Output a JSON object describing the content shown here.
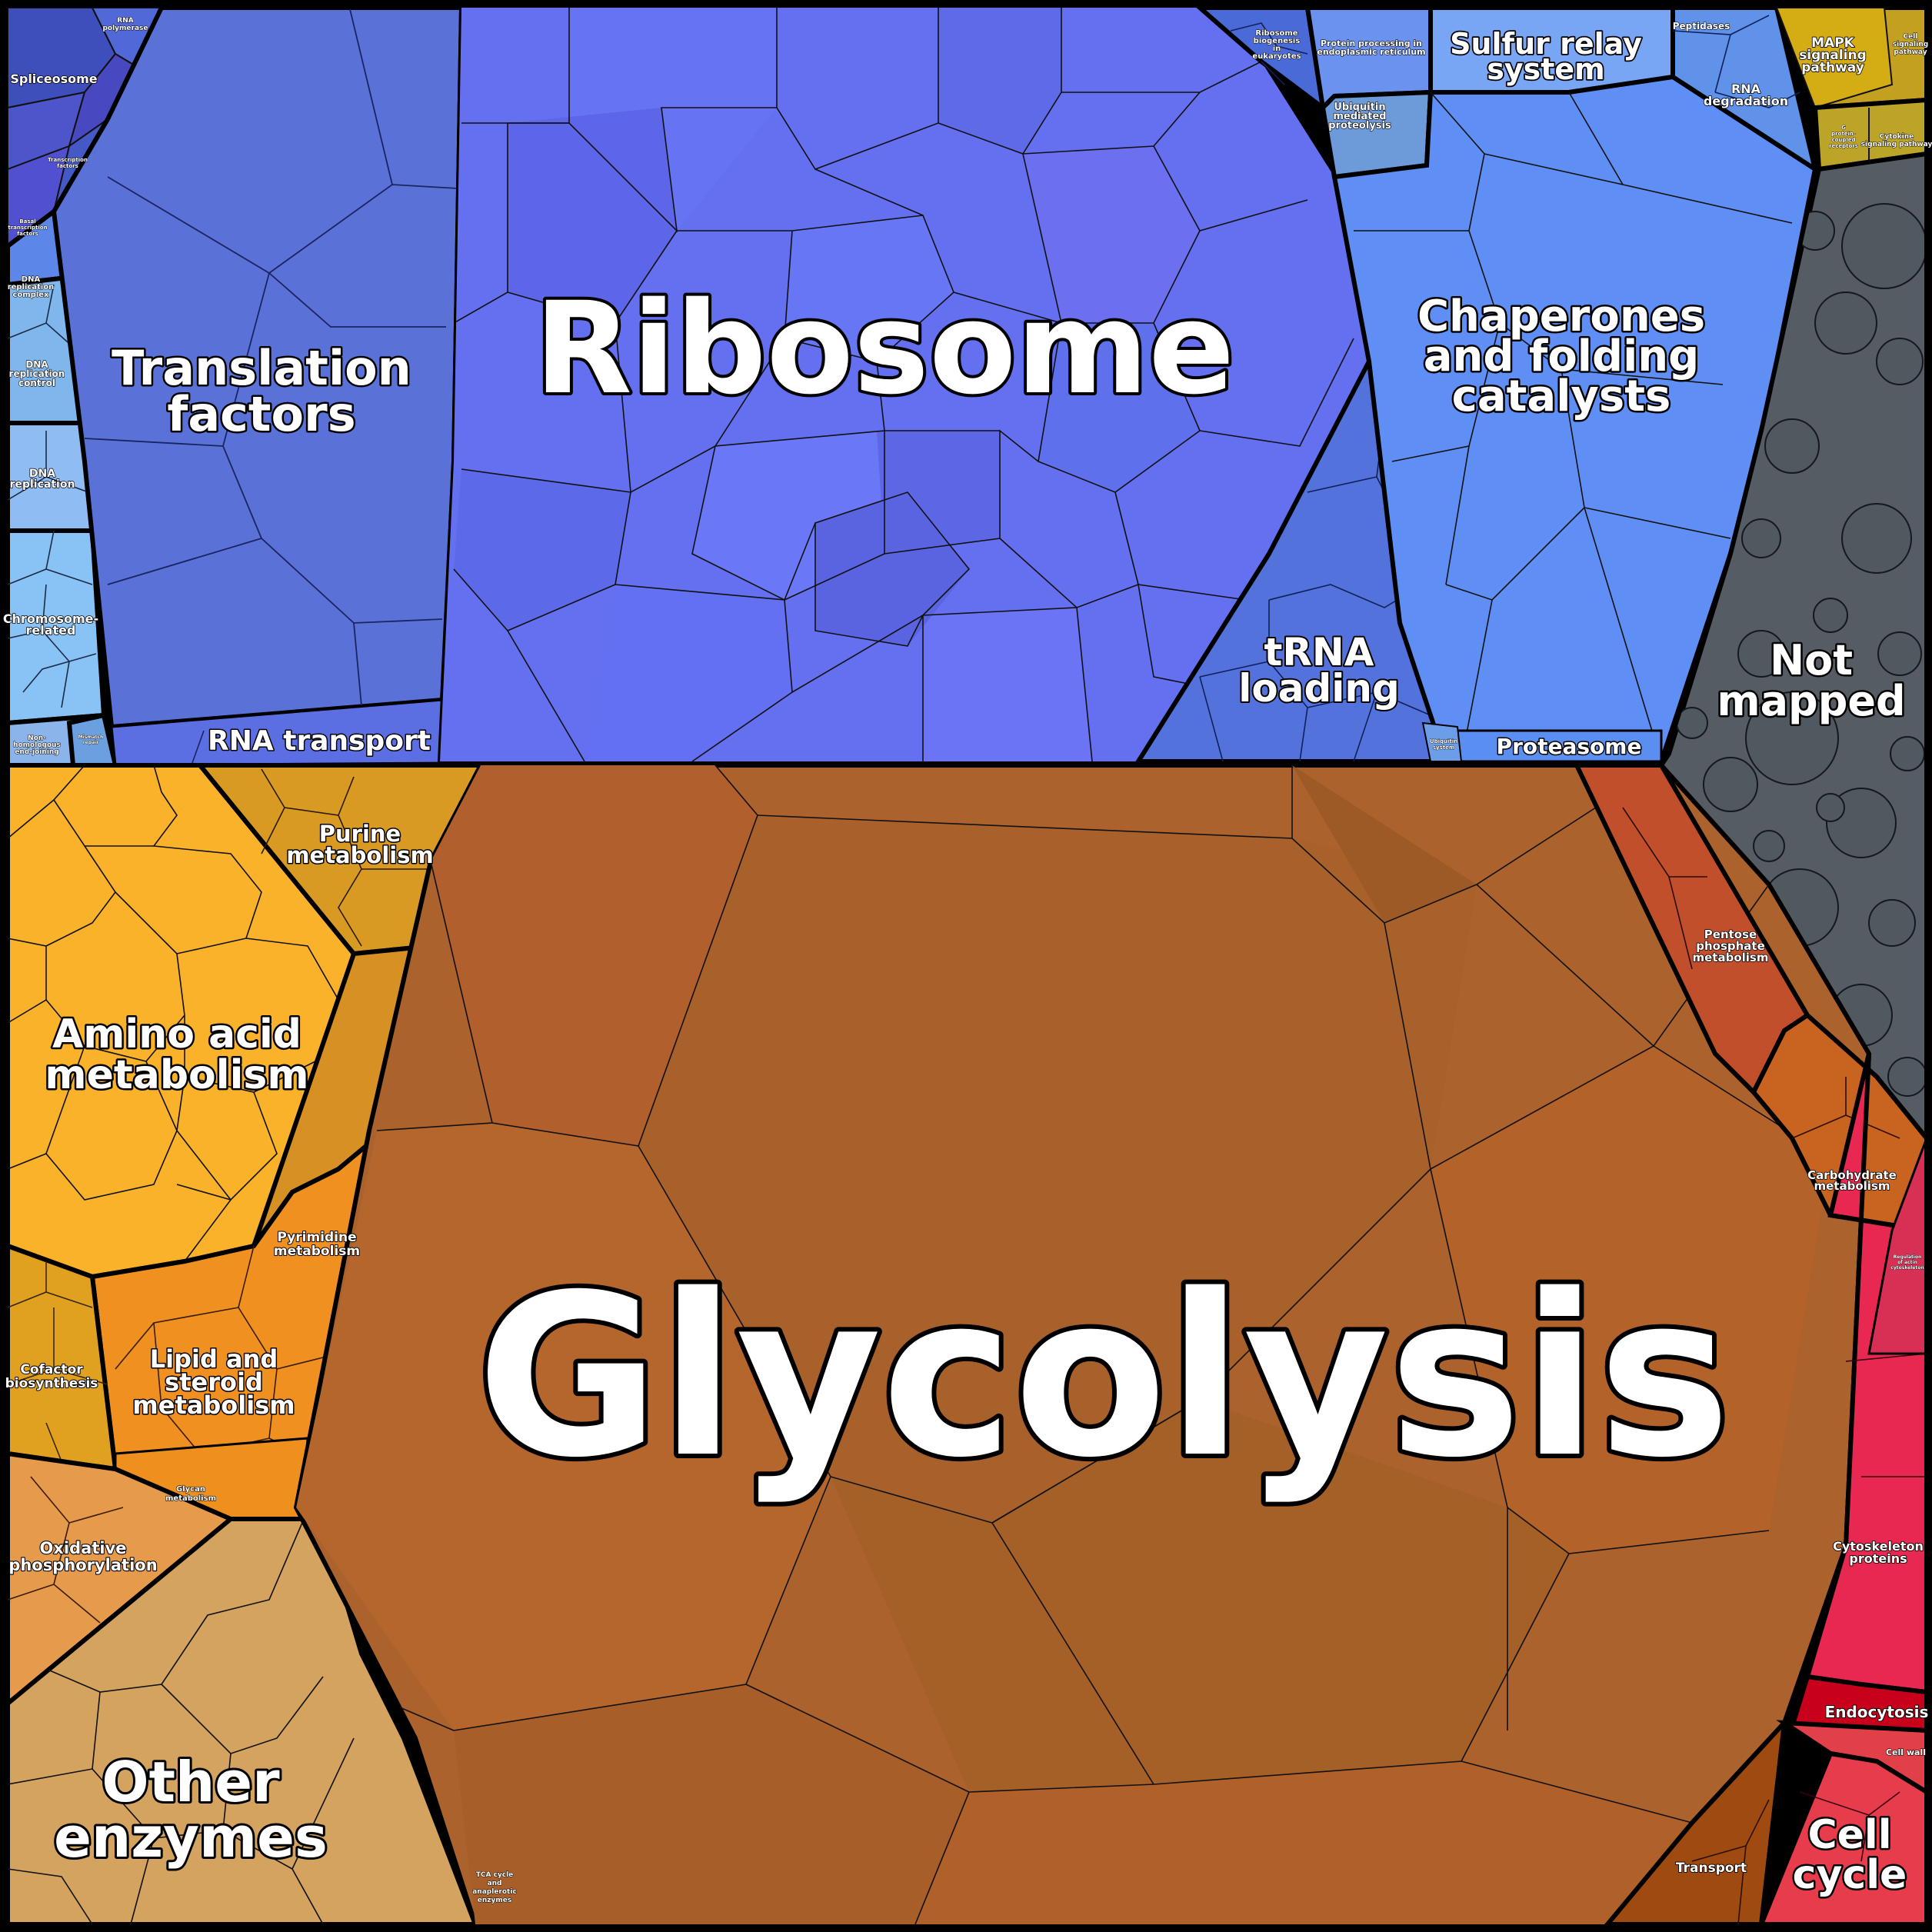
{
  "diagram": {
    "type": "voronoi-treemap",
    "categories": [
      {
        "key": "glycolysis",
        "label": "Glycolysis",
        "color": "#ab622c"
      },
      {
        "key": "ribosome",
        "label": "Ribosome",
        "color": "#6470f0"
      },
      {
        "key": "translation",
        "label": "Translation factors",
        "color": "#5a72d8"
      },
      {
        "key": "chaperones",
        "label": "Chaperones and folding catalysts",
        "color": "#5f8ff5"
      },
      {
        "key": "notmapped",
        "label": "Not mapped",
        "color": "#555c64"
      },
      {
        "key": "aminoacid",
        "label": "Amino acid metabolism",
        "color": "#f9b22a"
      },
      {
        "key": "otherenzymes",
        "label": "Other enzymes",
        "color": "#d3a35f"
      },
      {
        "key": "cellcycle",
        "label": "Cell cycle",
        "color": "#e63c4c"
      }
    ],
    "labels": {
      "ribosome": "Ribosome",
      "glycolysis": "Glycolysis",
      "translation_1": "Translation",
      "translation_2": "factors",
      "chaperones_1": "Chaperones",
      "chaperones_2": "and folding",
      "chaperones_3": "catalysts",
      "trna_1": "tRNA",
      "trna_2": "loading",
      "notmapped_1": "Not",
      "notmapped_2": "mapped",
      "sulfur_1": "Sulfur relay",
      "sulfur_2": "system",
      "rna_transport": "RNA transport",
      "proteasome": "Proteasome",
      "aminoacid_1": "Amino acid",
      "aminoacid_2": "metabolism",
      "purine_1": "Purine",
      "purine_2": "metabolism",
      "pyrimidine_1": "Pyrimidine",
      "pyrimidine_2": "metabolism",
      "lipid_1": "Lipid and",
      "lipid_2": "steroid",
      "lipid_3": "metabolism",
      "cofactor_1": "Cofactor",
      "cofactor_2": "biosynthesis",
      "glycan_1": "Glycan",
      "glycan_2": "metabolism",
      "oxphos_1": "Oxidative",
      "oxphos_2": "phosphorylation",
      "otherenz_1": "Other",
      "otherenz_2": "enzymes",
      "tca_1": "TCA cycle",
      "tca_2": "and",
      "tca_3": "anaplerotic",
      "tca_4": "enzymes",
      "pentose_1": "Pentose",
      "pentose_2": "phosphate",
      "pentose_3": "metabolism",
      "carbo_1": "Carbohydrate",
      "carbo_2": "metabolism",
      "cytoskel_1": "Cytoskeleton",
      "cytoskel_2": "proteins",
      "endocytosis": "Endocytosis",
      "cellwall": "Cell wall",
      "cellcycle_1": "Cell",
      "cellcycle_2": "cycle",
      "transport": "Transport",
      "spliceosome": "Spliceosome",
      "rnapol_1": "RNA",
      "rnapol_2": "polymerase",
      "transcription_1": "Transcription",
      "transcription_2": "factors",
      "basal_1": "Basal",
      "basal_2": "transcription",
      "basal_3": "factors",
      "dnarep_complex_1": "DNA",
      "dnarep_complex_2": "replication",
      "dnarep_complex_3": "complex",
      "dnarep_control_1": "DNA",
      "dnarep_control_2": "replication",
      "dnarep_control_3": "control",
      "dnarep_1": "DNA",
      "dnarep_2": "replication",
      "chromosome_1": "Chromosome-",
      "chromosome_2": "related",
      "nonhomol_1": "Non-",
      "nonhomol_2": "homologous",
      "nonhomol_3": "end-joining",
      "ribobio_1": "Ribosome",
      "ribobio_2": "biogenesis",
      "ribobio_3": "in",
      "ribobio_4": "eukaryotes",
      "protproc_1": "Protein processing in",
      "protproc_2": "endoplasmic reticulum",
      "ubiq_1": "Ubiquitin",
      "ubiq_2": "mediated",
      "ubiq_3": "proteolysis",
      "peptidases": "Peptidases",
      "rnadeg_1": "RNA",
      "rnadeg_2": "degradation",
      "mapk_1": "MAPK",
      "mapk_2": "signaling",
      "mapk_3": "pathway",
      "cellsig_1": "Cell",
      "cellsig_2": "signaling",
      "cellsig_3": "pathway",
      "gprot_1": "G",
      "gprot_2": "protein-",
      "gprot_3": "coupled",
      "gprot_4": "receptors",
      "ctsig_1": "Cytokine",
      "ctsig_2": "signaling pathway",
      "actin_1": "Regulation",
      "actin_2": "of actin",
      "actin_3": "cytoskeleton",
      "repair_1": "Mismatch",
      "repair_2": "repair",
      "proteasome_assembly_1": "Ubiquitin",
      "proteasome_assembly_2": "system"
    }
  }
}
